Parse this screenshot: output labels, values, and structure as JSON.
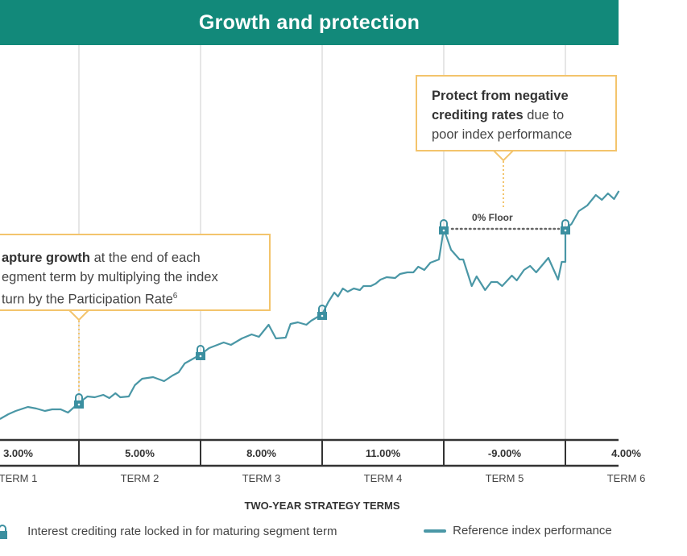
{
  "title": "Growth and protection",
  "colors": {
    "header": "#12897a",
    "line": "#4a97a6",
    "lock": "#3b8fa0",
    "callout_border": "#f3c46c",
    "grid": "#dddddd"
  },
  "callouts": {
    "growth": {
      "bold": "apture growth",
      "rest_line1": " at the end of each",
      "line2": "egment term by multiplying the index",
      "line3": "turn by the Participation Rate",
      "superscript": "6"
    },
    "protect": {
      "bold1": "Protect from negative",
      "bold2": "crediting rates",
      "rest_line2": " due to",
      "line3": "poor index performance"
    },
    "floor_label": "0% Floor"
  },
  "chart_data": {
    "type": "line",
    "title": "Growth and protection",
    "xlabel": "TWO-YEAR STRATEGY TERMS",
    "ylabel": "",
    "grid": "vertical lines at term boundaries",
    "categories": [
      "TERM 1",
      "TERM 2",
      "TERM 3",
      "TERM 4",
      "TERM 5",
      "TERM 6"
    ],
    "crediting_rates": [
      "3.00%",
      "5.00%",
      "8.00%",
      "11.00%",
      "-9.00%",
      "4.00%"
    ],
    "lock_points_term_end": [
      1,
      2,
      3,
      4,
      5
    ],
    "floor_between_terms": [
      4,
      5
    ],
    "series": [
      {
        "name": "Reference index performance",
        "points": [
          [
            0.35,
            40
          ],
          [
            0.42,
            46
          ],
          [
            0.48,
            50
          ],
          [
            0.58,
            55
          ],
          [
            0.65,
            53
          ],
          [
            0.72,
            50
          ],
          [
            0.78,
            52
          ],
          [
            0.85,
            52
          ],
          [
            0.91,
            48
          ],
          [
            1.0,
            60
          ],
          [
            1.07,
            68
          ],
          [
            1.13,
            67
          ],
          [
            1.2,
            70
          ],
          [
            1.25,
            66
          ],
          [
            1.3,
            72
          ],
          [
            1.34,
            67
          ],
          [
            1.41,
            68
          ],
          [
            1.46,
            82
          ],
          [
            1.52,
            90
          ],
          [
            1.61,
            92
          ],
          [
            1.7,
            87
          ],
          [
            1.77,
            94
          ],
          [
            1.82,
            98
          ],
          [
            1.87,
            109
          ],
          [
            2.0,
            120
          ],
          [
            2.07,
            128
          ],
          [
            2.19,
            135
          ],
          [
            2.25,
            132
          ],
          [
            2.34,
            140
          ],
          [
            2.42,
            145
          ],
          [
            2.48,
            142
          ],
          [
            2.56,
            157
          ],
          [
            2.62,
            140
          ],
          [
            2.7,
            141
          ],
          [
            2.74,
            158
          ],
          [
            2.8,
            160
          ],
          [
            2.87,
            157
          ],
          [
            2.91,
            162
          ],
          [
            3.0,
            170
          ],
          [
            3.05,
            185
          ],
          [
            3.1,
            197
          ],
          [
            3.13,
            192
          ],
          [
            3.17,
            202
          ],
          [
            3.21,
            198
          ],
          [
            3.26,
            202
          ],
          [
            3.31,
            200
          ],
          [
            3.34,
            205
          ],
          [
            3.4,
            205
          ],
          [
            3.44,
            208
          ],
          [
            3.48,
            213
          ],
          [
            3.53,
            216
          ],
          [
            3.6,
            215
          ],
          [
            3.64,
            220
          ],
          [
            3.7,
            222
          ],
          [
            3.75,
            222
          ],
          [
            3.79,
            229
          ],
          [
            3.84,
            225
          ],
          [
            3.89,
            234
          ],
          [
            3.96,
            238
          ],
          [
            4.0,
            276
          ],
          [
            4.06,
            250
          ],
          [
            4.13,
            238
          ],
          [
            4.16,
            238
          ],
          [
            4.23,
            205
          ],
          [
            4.27,
            217
          ],
          [
            4.34,
            200
          ],
          [
            4.39,
            210
          ],
          [
            4.44,
            210
          ],
          [
            4.48,
            205
          ],
          [
            4.56,
            218
          ],
          [
            4.6,
            212
          ],
          [
            4.66,
            225
          ],
          [
            4.71,
            230
          ],
          [
            4.76,
            222
          ],
          [
            4.86,
            240
          ],
          [
            4.94,
            213
          ],
          [
            4.97,
            235
          ],
          [
            5.0,
            235
          ],
          [
            5.0,
            276
          ],
          [
            5.05,
            282
          ],
          [
            5.11,
            298
          ],
          [
            5.18,
            305
          ],
          [
            5.25,
            318
          ],
          [
            5.3,
            312
          ],
          [
            5.35,
            320
          ],
          [
            5.4,
            313
          ],
          [
            5.44,
            323
          ]
        ]
      }
    ],
    "legend": [
      {
        "symbol": "lock-icon",
        "label": "Interest crediting rate locked in for maturing segment term"
      },
      {
        "symbol": "line",
        "label": "Reference index performance"
      }
    ],
    "legend_placement": "bottom"
  }
}
